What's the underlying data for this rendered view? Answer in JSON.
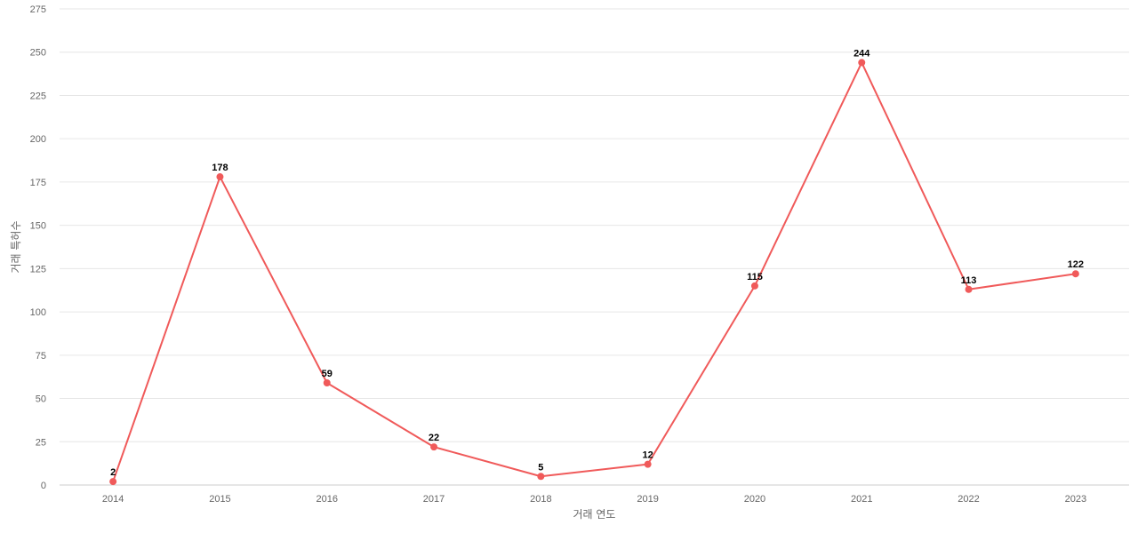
{
  "chart_data": {
    "type": "line",
    "title": "",
    "xlabel": "거래 연도",
    "ylabel": "거래 특허수",
    "categories": [
      "2014",
      "2015",
      "2016",
      "2017",
      "2018",
      "2019",
      "2020",
      "2021",
      "2022",
      "2023"
    ],
    "series": [
      {
        "values": [
          2,
          178,
          59,
          22,
          5,
          12,
          115,
          244,
          113,
          122
        ],
        "color": "#f05a5a"
      }
    ],
    "ylim": [
      0,
      275
    ],
    "yticks": [
      0,
      25,
      50,
      75,
      100,
      125,
      150,
      175,
      200,
      225,
      250,
      275
    ],
    "grid": true,
    "data_labels": true,
    "legend": "none"
  }
}
